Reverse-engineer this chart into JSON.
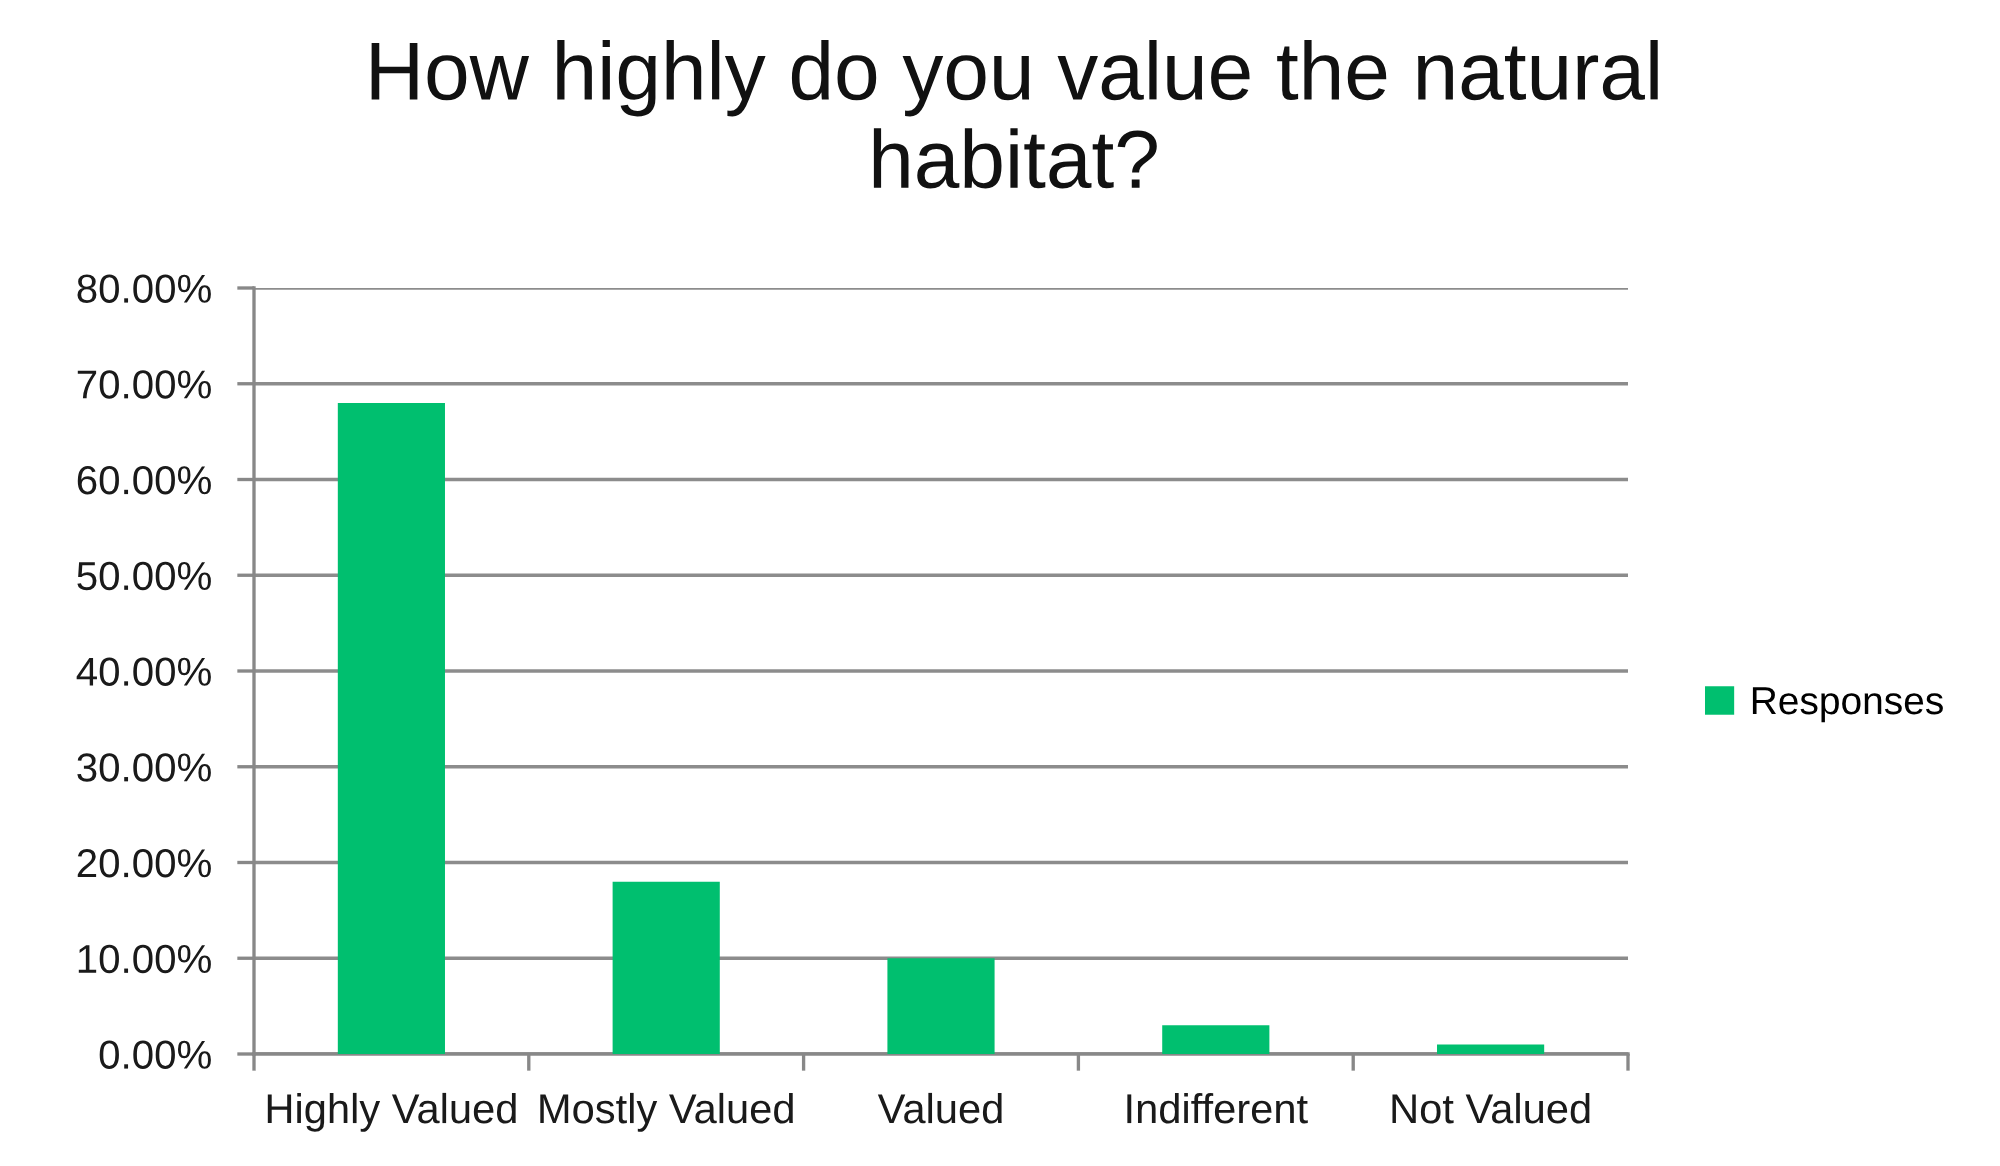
{
  "chart_data": {
    "type": "bar",
    "title": "How highly do you value the natural\nhabitat?",
    "categories": [
      "Highly Valued",
      "Mostly Valued",
      "Valued",
      "Indifferent",
      "Not Valued"
    ],
    "series": [
      {
        "name": "Responses",
        "color": "#00bf6f",
        "values": [
          68,
          18,
          10,
          3,
          1
        ]
      }
    ],
    "ylim": [
      0,
      80
    ],
    "yticks": [
      {
        "value": 0,
        "label": "0.00%"
      },
      {
        "value": 10,
        "label": "10.00%"
      },
      {
        "value": 20,
        "label": "20.00%"
      },
      {
        "value": 30,
        "label": "30.00%"
      },
      {
        "value": 40,
        "label": "40.00%"
      },
      {
        "value": 50,
        "label": "50.00%"
      },
      {
        "value": 60,
        "label": "60.00%"
      },
      {
        "value": 70,
        "label": "70.00%"
      },
      {
        "value": 80,
        "label": "80.00%"
      }
    ],
    "grid": "y",
    "legend": "right"
  }
}
